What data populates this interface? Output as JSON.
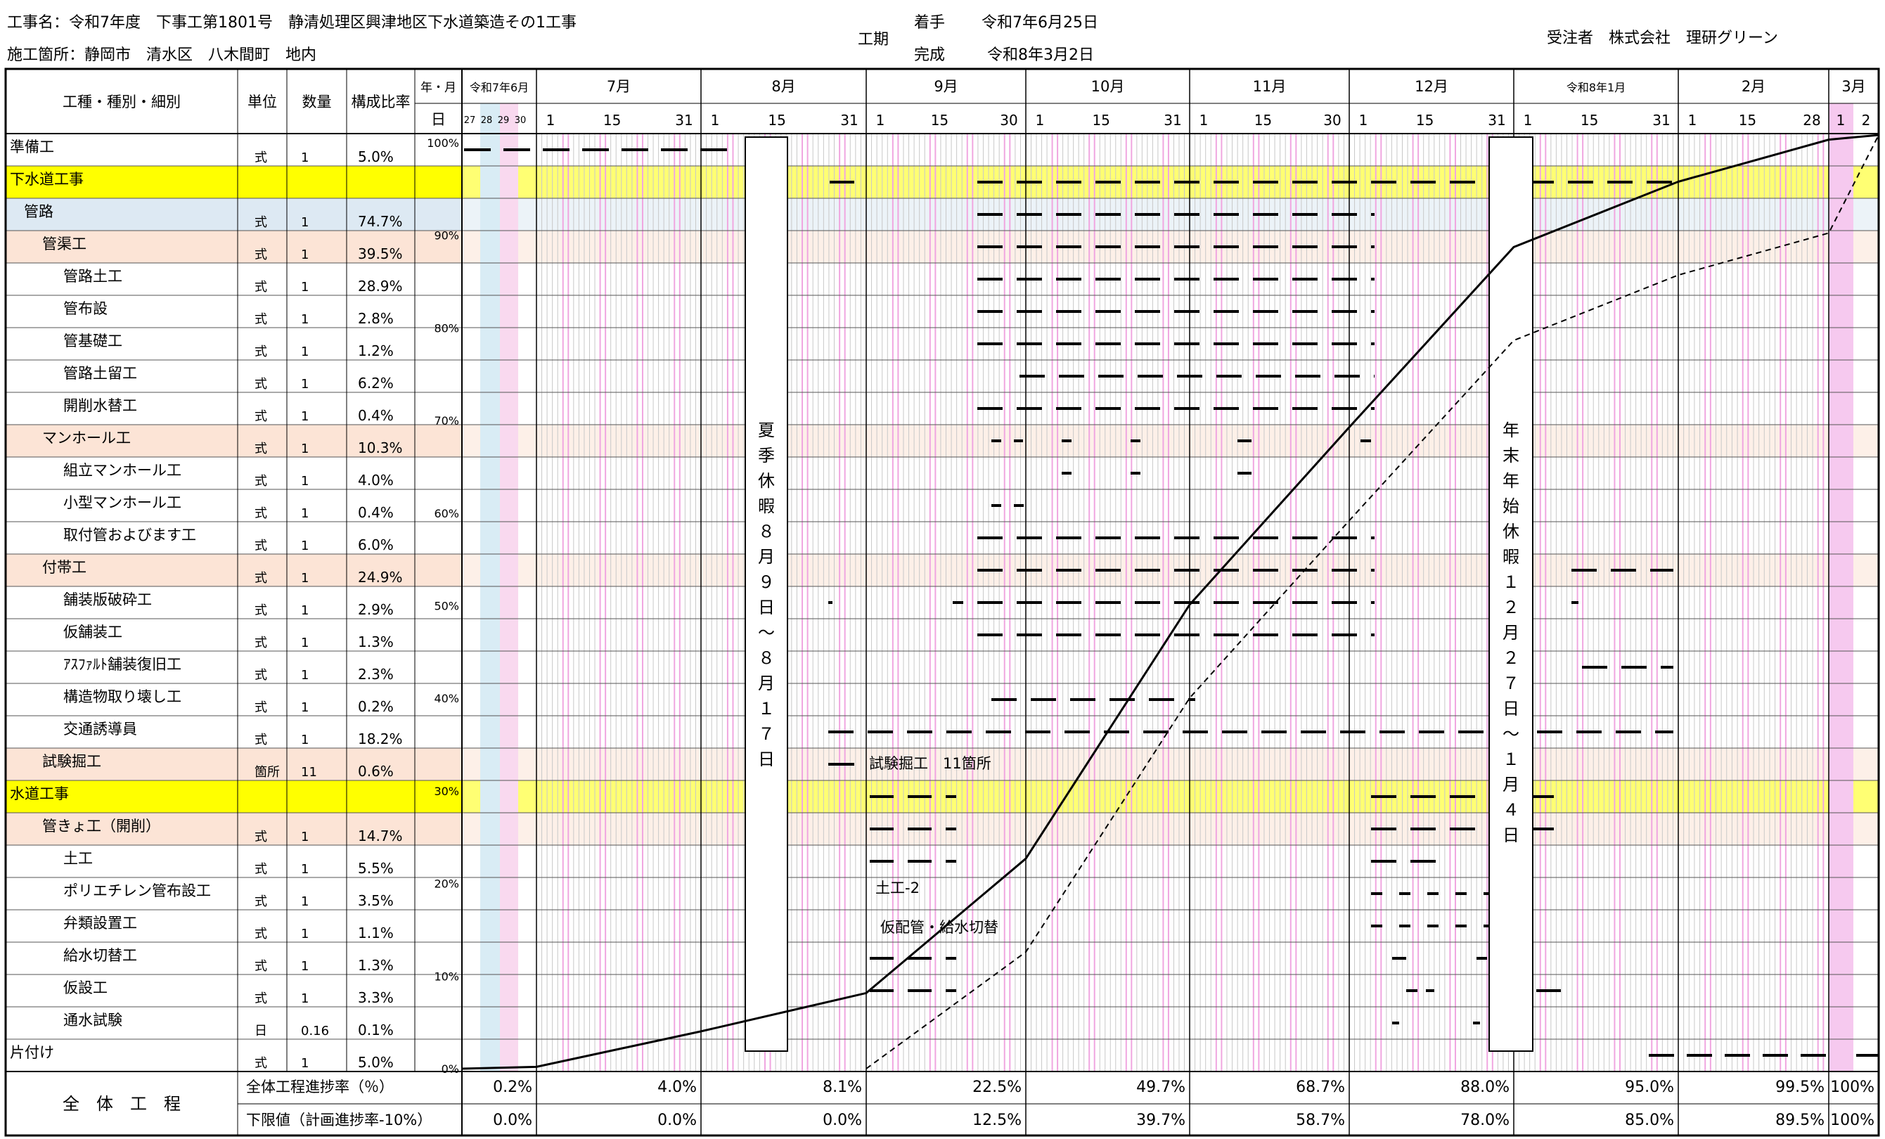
{
  "header": {
    "project_name": "工事名：令和7年度　下事工第1801号　静清処理区興津地区下水道築造その1工事",
    "location": "施工箇所：静岡市　清水区　八木間町　地内",
    "period_label": "工期",
    "start_label": "着手",
    "start_date": "令和7年6月25日",
    "end_label": "完成",
    "end_date": "令和8年3月2日",
    "contractor": "受注者　株式会社　理研グリーン"
  },
  "table": {
    "col_item": "工種・種別・細別",
    "col_unit": "単位",
    "col_qty": "数量",
    "col_ratio": "構成比率",
    "col_ym": "年・月",
    "col_day": "日",
    "months": [
      {
        "label": "令和7年6月",
        "ticks": [
          "27",
          "28",
          "29",
          "30"
        ]
      },
      {
        "label": "7月",
        "ticks": [
          "1",
          "15",
          "31"
        ]
      },
      {
        "label": "8月",
        "ticks": [
          "1",
          "15",
          "31"
        ]
      },
      {
        "label": "9月",
        "ticks": [
          "1",
          "15",
          "30"
        ]
      },
      {
        "label": "10月",
        "ticks": [
          "1",
          "15",
          "31"
        ]
      },
      {
        "label": "11月",
        "ticks": [
          "1",
          "15",
          "30"
        ]
      },
      {
        "label": "12月",
        "ticks": [
          "1",
          "15",
          "31"
        ]
      },
      {
        "label": "令和8年1月",
        "ticks": [
          "1",
          "15",
          "31"
        ]
      },
      {
        "label": "2月",
        "ticks": [
          "1",
          "15",
          "28"
        ]
      },
      {
        "label": "3月",
        "ticks": [
          "1",
          "2"
        ]
      }
    ],
    "pct_axis": [
      "100%",
      "90%",
      "80%",
      "70%",
      "60%",
      "50%",
      "40%",
      "30%",
      "20%",
      "10%",
      "0%"
    ],
    "rows": [
      {
        "name": "準備工",
        "unit": "式",
        "qty": "1",
        "ratio": "5.0%",
        "style": "plain",
        "indent": 0
      },
      {
        "name": "下水道工事",
        "unit": "",
        "qty": "",
        "ratio": "",
        "style": "yellow",
        "indent": 0
      },
      {
        "name": "管路",
        "unit": "式",
        "qty": "1",
        "ratio": "74.7%",
        "style": "blue",
        "indent": 1
      },
      {
        "name": "管渠工",
        "unit": "式",
        "qty": "1",
        "ratio": "39.5%",
        "style": "pink",
        "indent": 2
      },
      {
        "name": "管路土工",
        "unit": "式",
        "qty": "1",
        "ratio": "28.9%",
        "style": "plain",
        "indent": 3
      },
      {
        "name": "管布設",
        "unit": "式",
        "qty": "1",
        "ratio": "2.8%",
        "style": "plain",
        "indent": 3
      },
      {
        "name": "管基礎工",
        "unit": "式",
        "qty": "1",
        "ratio": "1.2%",
        "style": "plain",
        "indent": 3
      },
      {
        "name": "管路土留工",
        "unit": "式",
        "qty": "1",
        "ratio": "6.2%",
        "style": "plain",
        "indent": 3
      },
      {
        "name": "開削水替工",
        "unit": "式",
        "qty": "1",
        "ratio": "0.4%",
        "style": "plain",
        "indent": 3
      },
      {
        "name": "マンホール工",
        "unit": "式",
        "qty": "1",
        "ratio": "10.3%",
        "style": "pink",
        "indent": 2
      },
      {
        "name": "組立マンホール工",
        "unit": "式",
        "qty": "1",
        "ratio": "4.0%",
        "style": "plain",
        "indent": 3
      },
      {
        "name": "小型マンホール工",
        "unit": "式",
        "qty": "1",
        "ratio": "0.4%",
        "style": "plain",
        "indent": 3
      },
      {
        "name": "取付管およびます工",
        "unit": "式",
        "qty": "1",
        "ratio": "6.0%",
        "style": "plain",
        "indent": 3
      },
      {
        "name": "付帯工",
        "unit": "式",
        "qty": "1",
        "ratio": "24.9%",
        "style": "pink",
        "indent": 2
      },
      {
        "name": "舗装版破砕工",
        "unit": "式",
        "qty": "1",
        "ratio": "2.9%",
        "style": "plain",
        "indent": 3
      },
      {
        "name": "仮舗装工",
        "unit": "式",
        "qty": "1",
        "ratio": "1.3%",
        "style": "plain",
        "indent": 3
      },
      {
        "name": "ｱｽﾌｧﾙﾄ舗装復旧工",
        "unit": "式",
        "qty": "1",
        "ratio": "2.3%",
        "style": "plain",
        "indent": 3
      },
      {
        "name": "構造物取り壊し工",
        "unit": "式",
        "qty": "1",
        "ratio": "0.2%",
        "style": "plain",
        "indent": 3
      },
      {
        "name": "交通誘導員",
        "unit": "式",
        "qty": "1",
        "ratio": "18.2%",
        "style": "plain",
        "indent": 3
      },
      {
        "name": "試験掘工",
        "unit": "箇所",
        "qty": "11",
        "ratio": "0.6%",
        "style": "pink",
        "indent": 2
      },
      {
        "name": "水道工事",
        "unit": "",
        "qty": "",
        "ratio": "",
        "style": "yellow",
        "indent": 0
      },
      {
        "name": "管きょ工（開削）",
        "unit": "式",
        "qty": "1",
        "ratio": "14.7%",
        "style": "pink",
        "indent": 2
      },
      {
        "name": "土工",
        "unit": "式",
        "qty": "1",
        "ratio": "5.5%",
        "style": "plain",
        "indent": 3
      },
      {
        "name": "ポリエチレン管布設工",
        "unit": "式",
        "qty": "1",
        "ratio": "3.5%",
        "style": "plain",
        "indent": 3
      },
      {
        "name": "弁類設置工",
        "unit": "式",
        "qty": "1",
        "ratio": "1.1%",
        "style": "plain",
        "indent": 3
      },
      {
        "name": "給水切替工",
        "unit": "式",
        "qty": "1",
        "ratio": "1.3%",
        "style": "plain",
        "indent": 3
      },
      {
        "name": "仮設工",
        "unit": "式",
        "qty": "1",
        "ratio": "3.3%",
        "style": "plain",
        "indent": 3
      },
      {
        "name": "通水試験",
        "unit": "日",
        "qty": "0.16",
        "ratio": "0.1%",
        "style": "plain",
        "indent": 3
      },
      {
        "name": "片付け",
        "unit": "式",
        "qty": "1",
        "ratio": "5.0%",
        "style": "plain",
        "indent": 0
      }
    ],
    "summer_holiday": "夏季休暇８月９日〜８月１７日",
    "winter_holiday": "年末年始休暇１２月２７日〜１月４日",
    "note_test_dig": "試験掘工　11箇所",
    "note_earthwork": "土工-2",
    "note_temp_pipe": "仮配管・給水切替"
  },
  "summary": {
    "label": "全　体　工　程",
    "progress_label": "全体工程進捗率（％）",
    "lower_label": "下限値（計画進捗率-10%）",
    "progress": [
      "0.2%",
      "4.0%",
      "8.1%",
      "22.5%",
      "49.7%",
      "68.7%",
      "88.0%",
      "95.0%",
      "99.5%",
      "100%"
    ],
    "lower": [
      "0.0%",
      "0.0%",
      "0.0%",
      "12.5%",
      "39.7%",
      "58.7%",
      "78.0%",
      "85.0%",
      "89.5%",
      "100%"
    ]
  },
  "chart_data": {
    "type": "line",
    "x": [
      "7/1",
      "8/1",
      "9/1",
      "10/1",
      "11/1",
      "12/1",
      "1/1",
      "2/1",
      "3/1",
      "3/2"
    ],
    "series": [
      {
        "values": [
          0.2,
          4.0,
          8.1,
          22.5,
          49.7,
          68.7,
          88.0,
          95.0,
          99.5,
          100
        ]
      },
      {
        "values": [
          0.0,
          0.0,
          0.0,
          12.5,
          39.7,
          58.7,
          78.0,
          85.0,
          89.5,
          100
        ]
      }
    ],
    "ylim": [
      0,
      100
    ]
  }
}
